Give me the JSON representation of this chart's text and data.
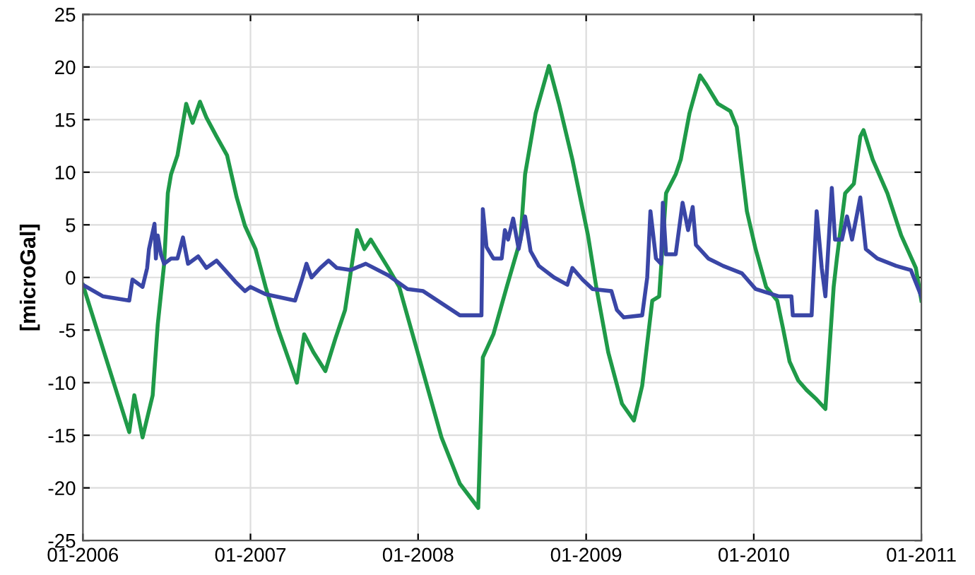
{
  "chart_data": {
    "type": "line",
    "ylabel": "[microGal]",
    "xlim": [
      "2006-01",
      "2011-01"
    ],
    "ylim": [
      -25,
      25
    ],
    "xticks": [
      {
        "value": "2006-01",
        "label": "01-2006"
      },
      {
        "value": "2007-01",
        "label": "01-2007"
      },
      {
        "value": "2008-01",
        "label": "01-2008"
      },
      {
        "value": "2009-01",
        "label": "01-2009"
      },
      {
        "value": "2010-01",
        "label": "01-2010"
      },
      {
        "value": "2011-01",
        "label": "01-2011"
      }
    ],
    "yticks": [
      -25,
      -20,
      -15,
      -10,
      -5,
      0,
      5,
      10,
      15,
      20,
      25
    ],
    "grid": true,
    "marker": "none",
    "line_style": "solid",
    "series": [
      {
        "color": "#1f9a48",
        "x": [
          "2006-01-01",
          "2006-04-12",
          "2006-04-23",
          "2006-05-11",
          "2006-06-02",
          "2006-06-13",
          "2006-06-27",
          "2006-07-05",
          "2006-07-12",
          "2006-07-26",
          "2006-08-14",
          "2006-08-28",
          "2006-09-13",
          "2006-09-27",
          "2006-10-19",
          "2006-11-11",
          "2006-12-02",
          "2006-12-20",
          "2007-01-12",
          "2007-02-03",
          "2007-03-02",
          "2007-04-12",
          "2007-04-28",
          "2007-05-18",
          "2007-06-13",
          "2007-07-05",
          "2007-07-26",
          "2007-08-21",
          "2007-09-06",
          "2007-09-20",
          "2007-10-28",
          "2007-11-21",
          "2007-12-20",
          "2008-01-23",
          "2008-02-21",
          "2008-04-01",
          "2008-05-11",
          "2008-05-21",
          "2008-06-13",
          "2008-07-12",
          "2008-08-11",
          "2008-08-21",
          "2008-09-13",
          "2008-10-12",
          "2008-11-03",
          "2008-12-02",
          "2009-01-05",
          "2009-01-23",
          "2009-02-18",
          "2009-03-20",
          "2009-04-15",
          "2009-05-03",
          "2009-05-25",
          "2009-06-09",
          "2009-06-24",
          "2009-07-15",
          "2009-07-26",
          "2009-08-14",
          "2009-09-06",
          "2009-09-20",
          "2009-10-15",
          "2009-11-11",
          "2009-11-25",
          "2009-12-17",
          "2010-01-05",
          "2010-01-28",
          "2010-02-21",
          "2010-03-06",
          "2010-03-20",
          "2010-04-08",
          "2010-04-26",
          "2010-05-18",
          "2010-06-06",
          "2010-06-24",
          "2010-07-01",
          "2010-07-19",
          "2010-08-07",
          "2010-08-21",
          "2010-08-28",
          "2010-09-17",
          "2010-10-19",
          "2010-11-18",
          "2010-12-20",
          "2011-01-01"
        ],
        "values": [
          -0.7,
          -14.7,
          -11.2,
          -15.2,
          -11.2,
          -4.5,
          1.3,
          8,
          9.8,
          11.6,
          16.5,
          14.7,
          16.7,
          15.2,
          13.4,
          11.6,
          7.6,
          4.9,
          2.7,
          -0.9,
          -4.9,
          -10,
          -5.4,
          -7.1,
          -8.9,
          -5.8,
          -3.1,
          4.5,
          2.7,
          3.6,
          0.9,
          -0.9,
          -5.4,
          -10.7,
          -15.2,
          -19.6,
          -21.9,
          -7.6,
          -5.4,
          -0.9,
          3.6,
          9.8,
          15.6,
          20.1,
          16.5,
          11.2,
          4,
          -0.9,
          -7.1,
          -12,
          -13.6,
          -10.3,
          -2.2,
          -1.8,
          8,
          9.8,
          11.2,
          15.6,
          19.2,
          18.3,
          16.5,
          15.8,
          14.3,
          6.3,
          2.7,
          -0.9,
          -2.2,
          -4.9,
          -8,
          -9.8,
          -10.7,
          -11.6,
          -12.5,
          -0.9,
          1.8,
          8,
          8.9,
          13.4,
          14,
          11.2,
          8,
          4,
          0.9,
          -2.2
        ]
      },
      {
        "color": "#3a46a6",
        "x": [
          "2006-01-01",
          "2006-02-14",
          "2006-04-12",
          "2006-04-19",
          "2006-05-11",
          "2006-05-21",
          "2006-05-25",
          "2006-06-06",
          "2006-06-09",
          "2006-06-13",
          "2006-06-20",
          "2006-06-27",
          "2006-07-12",
          "2006-07-26",
          "2006-08-07",
          "2006-08-18",
          "2006-09-09",
          "2006-09-27",
          "2006-10-19",
          "2006-11-29",
          "2006-12-20",
          "2007-01-01",
          "2007-02-03",
          "2007-04-08",
          "2007-04-23",
          "2007-05-03",
          "2007-05-14",
          "2007-06-02",
          "2007-06-20",
          "2007-07-08",
          "2007-08-07",
          "2007-09-09",
          "2007-10-28",
          "2007-12-09",
          "2008-01-12",
          "2008-04-01",
          "2008-05-18",
          "2008-05-21",
          "2008-05-29",
          "2008-06-13",
          "2008-07-01",
          "2008-07-08",
          "2008-07-15",
          "2008-07-26",
          "2008-08-07",
          "2008-08-21",
          "2008-09-02",
          "2008-09-20",
          "2008-10-23",
          "2008-11-21",
          "2008-12-02",
          "2008-12-24",
          "2009-01-15",
          "2009-02-25",
          "2009-03-09",
          "2009-03-24",
          "2009-05-03",
          "2009-05-14",
          "2009-05-21",
          "2009-06-02",
          "2009-06-13",
          "2009-06-17",
          "2009-06-24",
          "2009-07-15",
          "2009-07-30",
          "2009-08-11",
          "2009-08-21",
          "2009-08-28",
          "2009-09-24",
          "2009-10-26",
          "2009-12-06",
          "2010-01-05",
          "2010-02-25",
          "2010-03-24",
          "2010-03-27",
          "2010-05-07",
          "2010-05-18",
          "2010-05-29",
          "2010-06-06",
          "2010-06-20",
          "2010-06-27",
          "2010-07-12",
          "2010-07-23",
          "2010-08-03",
          "2010-08-21",
          "2010-09-02",
          "2010-09-27",
          "2010-11-07",
          "2010-12-09",
          "2011-01-01"
        ],
        "values": [
          -0.7,
          -1.8,
          -2.2,
          -0.2,
          -0.9,
          0.9,
          2.7,
          5.1,
          1.8,
          4,
          2.2,
          1.3,
          1.8,
          1.8,
          3.8,
          1.3,
          2,
          0.9,
          1.6,
          -0.4,
          -1.3,
          -0.9,
          -1.6,
          -2.2,
          -0.2,
          1.3,
          0,
          0.9,
          1.6,
          0.9,
          0.7,
          1.3,
          0.2,
          -1.1,
          -1.3,
          -3.6,
          -3.6,
          6.5,
          2.9,
          1.8,
          1.8,
          4.5,
          3.6,
          5.6,
          2.7,
          5.8,
          2.5,
          1.1,
          0,
          -0.7,
          0.9,
          -0.2,
          -1.1,
          -1.3,
          -3.1,
          -3.8,
          -3.6,
          0,
          6.3,
          1.8,
          1.3,
          7.1,
          2.2,
          2.2,
          7.1,
          4.5,
          6.7,
          3.1,
          1.8,
          1.1,
          0.4,
          -1.1,
          -1.8,
          -1.8,
          -3.6,
          -3.6,
          6.3,
          0.9,
          -1.8,
          8.5,
          3.6,
          3.6,
          5.8,
          3.6,
          7.6,
          2.7,
          1.8,
          1.1,
          0.7,
          -1.8
        ]
      }
    ]
  }
}
